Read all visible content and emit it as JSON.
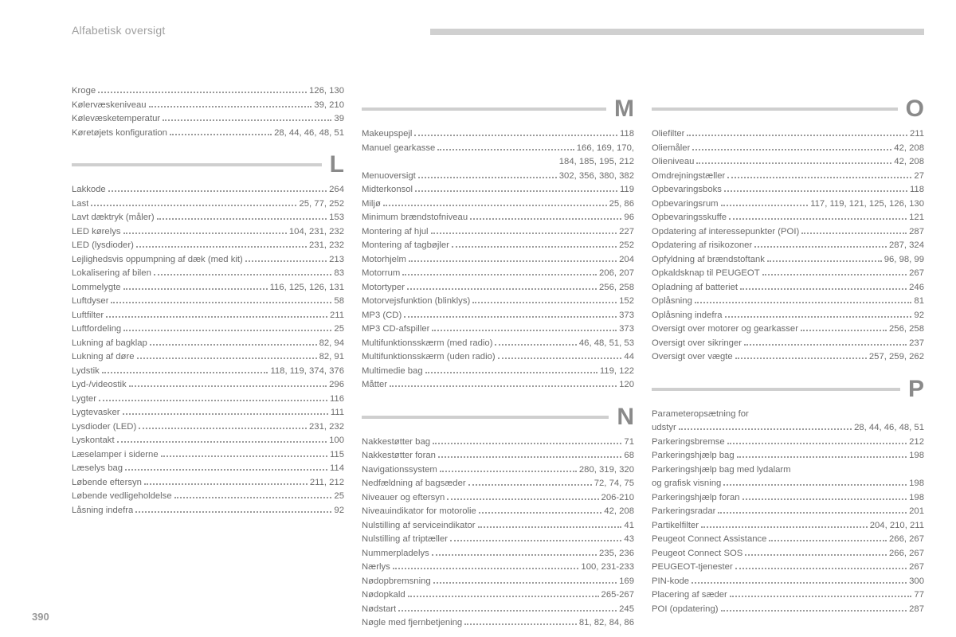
{
  "header": "Alfabetisk oversigt",
  "pageNumber": "390",
  "columns": [
    {
      "groups": [
        {
          "letter": null,
          "entries": [
            {
              "label": "Kroge",
              "pages": "126, 130"
            },
            {
              "label": "Kølervæskeniveau",
              "pages": "39, 210"
            },
            {
              "label": "Kølevæsketemperatur",
              "pages": "39"
            },
            {
              "label": "Køretøjets konfiguration",
              "pages": "28, 44, 46, 48, 51"
            }
          ]
        },
        {
          "letter": "L",
          "entries": [
            {
              "label": "Lakkode",
              "pages": "264"
            },
            {
              "label": "Last",
              "pages": "25, 77, 252"
            },
            {
              "label": "Lavt dæktryk (måler)",
              "pages": "153"
            },
            {
              "label": "LED kørelys",
              "pages": "104, 231, 232"
            },
            {
              "label": "LED (lysdioder)",
              "pages": "231, 232"
            },
            {
              "label": "Lejlighedsvis oppumpning af dæk (med kit)",
              "pages": "213"
            },
            {
              "label": "Lokalisering af bilen",
              "pages": "83"
            },
            {
              "label": "Lommelygte",
              "pages": "116, 125, 126, 131"
            },
            {
              "label": "Luftdyser",
              "pages": "58"
            },
            {
              "label": "Luftfilter",
              "pages": "211"
            },
            {
              "label": "Luftfordeling",
              "pages": "25"
            },
            {
              "label": "Lukning af bagklap",
              "pages": "82, 94"
            },
            {
              "label": "Lukning af døre",
              "pages": "82, 91"
            },
            {
              "label": "Lydstik",
              "pages": "118, 119, 374, 376"
            },
            {
              "label": "Lyd-/videostik",
              "pages": "296"
            },
            {
              "label": "Lygter",
              "pages": "116"
            },
            {
              "label": "Lygtevasker",
              "pages": "111"
            },
            {
              "label": "Lysdioder (LED)",
              "pages": "231, 232"
            },
            {
              "label": "Lyskontakt",
              "pages": "100"
            },
            {
              "label": "Læselamper i siderne",
              "pages": "115"
            },
            {
              "label": "Læselys bag",
              "pages": "114"
            },
            {
              "label": "Løbende eftersyn",
              "pages": "211, 212"
            },
            {
              "label": "Løbende vedligeholdelse",
              "pages": "25"
            },
            {
              "label": "Låsning indefra",
              "pages": "92"
            }
          ]
        }
      ]
    },
    {
      "groups": [
        {
          "letter": "M",
          "entries": [
            {
              "label": "Makeupspejl",
              "pages": "118"
            },
            {
              "label": "Manuel gearkasse",
              "pages": "166, 169, 170,"
            },
            {
              "label": "",
              "pages": "184, 185, 195, 212",
              "continuation": true
            },
            {
              "label": "Menuoversigt",
              "pages": "302, 356, 380, 382"
            },
            {
              "label": "Midterkonsol",
              "pages": "119"
            },
            {
              "label": "Miljø",
              "pages": "25, 86"
            },
            {
              "label": "Minimum brændstofniveau",
              "pages": "96"
            },
            {
              "label": "Montering af hjul",
              "pages": "227"
            },
            {
              "label": "Montering af tagbøjler",
              "pages": "252"
            },
            {
              "label": "Motorhjelm",
              "pages": "204"
            },
            {
              "label": "Motorrum",
              "pages": "206, 207"
            },
            {
              "label": "Motortyper",
              "pages": "256, 258"
            },
            {
              "label": "Motorvejsfunktion (blinklys)",
              "pages": "152"
            },
            {
              "label": "MP3 (CD)",
              "pages": "373"
            },
            {
              "label": "MP3 CD-afspiller",
              "pages": "373"
            },
            {
              "label": "Multifunktionsskærm (med radio)",
              "pages": "46, 48, 51, 53"
            },
            {
              "label": "Multifunktionsskærm (uden radio)",
              "pages": "44"
            },
            {
              "label": "Multimedie bag",
              "pages": "119, 122"
            },
            {
              "label": "Måtter",
              "pages": "120"
            }
          ]
        },
        {
          "letter": "N",
          "entries": [
            {
              "label": "Nakkestøtter bag",
              "pages": "71"
            },
            {
              "label": "Nakkestøtter foran",
              "pages": "68"
            },
            {
              "label": "Navigationssystem",
              "pages": "280, 319, 320"
            },
            {
              "label": "Nedfældning af bagsæder",
              "pages": "72, 74, 75"
            },
            {
              "label": "Niveauer og eftersyn",
              "pages": "206-210"
            },
            {
              "label": "Niveauindikator for motorolie",
              "pages": "42, 208"
            },
            {
              "label": "Nulstilling af serviceindikator",
              "pages": "41"
            },
            {
              "label": "Nulstilling af triptæller",
              "pages": "43"
            },
            {
              "label": "Nummerpladelys",
              "pages": "235, 236"
            },
            {
              "label": "Nærlys",
              "pages": "100, 231-233"
            },
            {
              "label": "Nødopbremsning",
              "pages": "169"
            },
            {
              "label": "Nødopkald",
              "pages": "265-267"
            },
            {
              "label": "Nødstart",
              "pages": "245"
            },
            {
              "label": "Nøgle med fjernbetjening",
              "pages": "81, 82, 84, 86"
            }
          ]
        }
      ]
    },
    {
      "groups": [
        {
          "letter": "O",
          "entries": [
            {
              "label": "Oliefilter",
              "pages": "211"
            },
            {
              "label": "Oliemåler",
              "pages": "42, 208"
            },
            {
              "label": "Olieniveau",
              "pages": "42, 208"
            },
            {
              "label": "Omdrejningstæller",
              "pages": "27"
            },
            {
              "label": "Opbevaringsboks",
              "pages": "118"
            },
            {
              "label": "Opbevaringsrum",
              "pages": "117, 119, 121, 125, 126, 130"
            },
            {
              "label": "Opbevaringsskuffe",
              "pages": "121"
            },
            {
              "label": "Opdatering af interessepunkter (POI)",
              "pages": "287"
            },
            {
              "label": "Opdatering af risikozoner",
              "pages": "287, 324"
            },
            {
              "label": "Opfyldning af brændstoftank",
              "pages": "96, 98, 99"
            },
            {
              "label": "Opkaldsknap til PEUGEOT",
              "pages": "267"
            },
            {
              "label": "Opladning af batteriet",
              "pages": "246"
            },
            {
              "label": "Oplåsning",
              "pages": "81"
            },
            {
              "label": "Oplåsning indefra",
              "pages": "92"
            },
            {
              "label": "Oversigt over motorer og gearkasser",
              "pages": "256, 258"
            },
            {
              "label": "Oversigt over sikringer",
              "pages": "237"
            },
            {
              "label": "Oversigt over vægte",
              "pages": "257, 259, 262"
            }
          ]
        },
        {
          "letter": "P",
          "entries": [
            {
              "label": "Parameteropsætning for",
              "pages": "",
              "nodots": true
            },
            {
              "label": "  udstyr",
              "pages": "28, 44, 46, 48, 51"
            },
            {
              "label": "Parkeringsbremse",
              "pages": "212"
            },
            {
              "label": "Parkeringshjælp bag",
              "pages": "198"
            },
            {
              "label": "Parkeringshjælp bag med lydalarm",
              "pages": "",
              "nodots": true
            },
            {
              "label": "  og grafisk visning",
              "pages": "198"
            },
            {
              "label": "Parkeringshjælp foran",
              "pages": "198"
            },
            {
              "label": "Parkeringsradar",
              "pages": "201"
            },
            {
              "label": "Partikelfilter",
              "pages": "204, 210, 211"
            },
            {
              "label": "Peugeot Connect Assistance",
              "pages": "266, 267"
            },
            {
              "label": "Peugeot Connect SOS",
              "pages": "266, 267"
            },
            {
              "label": "PEUGEOT-tjenester",
              "pages": "267"
            },
            {
              "label": "PIN-kode",
              "pages": "300"
            },
            {
              "label": "Placering af sæder",
              "pages": "77"
            },
            {
              "label": "POI (opdatering)",
              "pages": "287"
            }
          ]
        }
      ]
    }
  ]
}
